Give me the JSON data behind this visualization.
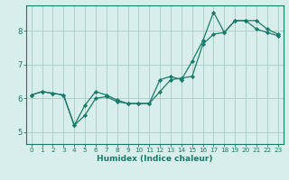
{
  "xlabel": "Humidex (Indice chaleur)",
  "bg_color": "#d8eeea",
  "grid_color": "#a8ccc4",
  "line_color": "#1a7a6a",
  "xlim": [
    -0.5,
    23.5
  ],
  "ylim": [
    4.65,
    8.75
  ],
  "xticks": [
    0,
    1,
    2,
    3,
    4,
    5,
    6,
    7,
    8,
    9,
    10,
    11,
    12,
    13,
    14,
    15,
    16,
    17,
    18,
    19,
    20,
    21,
    22,
    23
  ],
  "yticks": [
    5,
    6,
    7,
    8
  ],
  "line1_x": [
    0,
    1,
    2,
    3,
    4,
    5,
    6,
    7,
    8,
    9,
    10,
    11,
    12,
    13,
    14,
    15,
    16,
    17,
    18,
    19,
    20,
    21,
    22,
    23
  ],
  "line1_y": [
    6.1,
    6.2,
    6.15,
    6.1,
    5.2,
    5.5,
    6.0,
    6.05,
    5.9,
    5.85,
    5.85,
    5.85,
    6.2,
    6.55,
    6.6,
    6.65,
    7.6,
    7.9,
    7.95,
    8.3,
    8.3,
    8.3,
    8.05,
    7.9
  ],
  "line2_x": [
    0,
    1,
    2,
    3,
    4,
    5,
    6,
    7,
    8,
    9,
    10,
    11,
    12,
    13,
    14,
    15,
    16,
    17,
    18,
    19,
    20,
    21,
    22,
    23
  ],
  "line2_y": [
    6.1,
    6.2,
    6.15,
    6.1,
    5.2,
    5.8,
    6.2,
    6.1,
    5.95,
    5.85,
    5.85,
    5.85,
    6.55,
    6.65,
    6.55,
    7.1,
    7.7,
    8.55,
    7.95,
    8.3,
    8.3,
    8.05,
    7.95,
    7.85
  ]
}
